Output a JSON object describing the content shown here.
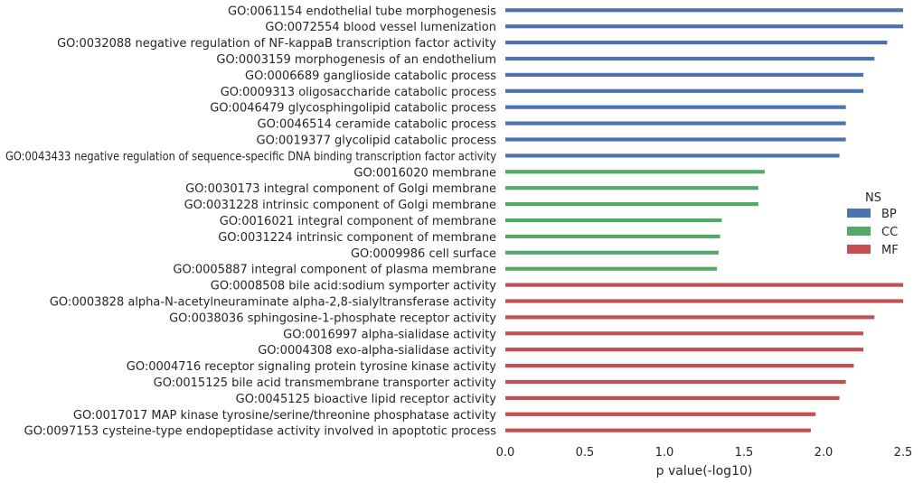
{
  "chart_data": {
    "type": "bar",
    "orientation": "horizontal",
    "xlabel": "p value(-log10)",
    "xlim": [
      0,
      2.5
    ],
    "xticks": [
      "0.0",
      "0.5",
      "1.0",
      "1.5",
      "2.0",
      "2.5"
    ],
    "grid": false,
    "legend": {
      "title": "NS",
      "placement": "right",
      "entries": [
        {
          "name": "BP",
          "color": "#4c72b0"
        },
        {
          "name": "CC",
          "color": "#55a868"
        },
        {
          "name": "MF",
          "color": "#c44e52"
        }
      ]
    },
    "bars": [
      {
        "label": "GO:0061154 endothelial tube morphogenesis",
        "value": 2.5,
        "group": "BP"
      },
      {
        "label": "GO:0072554 blood vessel lumenization",
        "value": 2.5,
        "group": "BP"
      },
      {
        "label": "GO:0032088 negative regulation of NF-kappaB transcription factor activity",
        "value": 2.4,
        "group": "BP"
      },
      {
        "label": "GO:0003159 morphogenesis of an endothelium",
        "value": 2.32,
        "group": "BP"
      },
      {
        "label": "GO:0006689 ganglioside catabolic process",
        "value": 2.25,
        "group": "BP"
      },
      {
        "label": "GO:0009313 oligosaccharide catabolic process",
        "value": 2.25,
        "group": "BP"
      },
      {
        "label": "GO:0046479 glycosphingolipid catabolic process",
        "value": 2.14,
        "group": "BP"
      },
      {
        "label": "GO:0046514 ceramide catabolic process",
        "value": 2.14,
        "group": "BP"
      },
      {
        "label": "GO:0019377 glycolipid catabolic process",
        "value": 2.14,
        "group": "BP"
      },
      {
        "label": "GO:0043433 negative regulation of sequence-specific DNA binding transcription factor activity",
        "value": 2.1,
        "group": "BP"
      },
      {
        "label": "GO:0016020 membrane",
        "value": 1.63,
        "group": "CC"
      },
      {
        "label": "GO:0030173 integral component of Golgi membrane",
        "value": 1.59,
        "group": "CC"
      },
      {
        "label": "GO:0031228 intrinsic component of Golgi membrane",
        "value": 1.59,
        "group": "CC"
      },
      {
        "label": "GO:0016021 integral component of membrane",
        "value": 1.36,
        "group": "CC"
      },
      {
        "label": "GO:0031224 intrinsic component of membrane",
        "value": 1.35,
        "group": "CC"
      },
      {
        "label": "GO:0009986 cell surface",
        "value": 1.34,
        "group": "CC"
      },
      {
        "label": "GO:0005887 integral component of plasma membrane",
        "value": 1.33,
        "group": "CC"
      },
      {
        "label": "GO:0008508 bile acid:sodium symporter activity",
        "value": 2.5,
        "group": "MF"
      },
      {
        "label": "GO:0003828 alpha-N-acetylneuraminate alpha-2,8-sialyltransferase activity",
        "value": 2.5,
        "group": "MF"
      },
      {
        "label": "GO:0038036 sphingosine-1-phosphate receptor activity",
        "value": 2.32,
        "group": "MF"
      },
      {
        "label": "GO:0016997 alpha-sialidase activity",
        "value": 2.25,
        "group": "MF"
      },
      {
        "label": "GO:0004308 exo-alpha-sialidase activity",
        "value": 2.25,
        "group": "MF"
      },
      {
        "label": "GO:0004716 receptor signaling protein tyrosine kinase activity",
        "value": 2.19,
        "group": "MF"
      },
      {
        "label": "GO:0015125 bile acid transmembrane transporter activity",
        "value": 2.14,
        "group": "MF"
      },
      {
        "label": "GO:0045125 bioactive lipid receptor activity",
        "value": 2.1,
        "group": "MF"
      },
      {
        "label": "GO:0017017 MAP kinase tyrosine/serine/threonine phosphatase activity",
        "value": 1.95,
        "group": "MF"
      },
      {
        "label": "GO:0097153 cysteine-type endopeptidase activity involved in apoptotic process",
        "value": 1.92,
        "group": "MF"
      }
    ]
  }
}
